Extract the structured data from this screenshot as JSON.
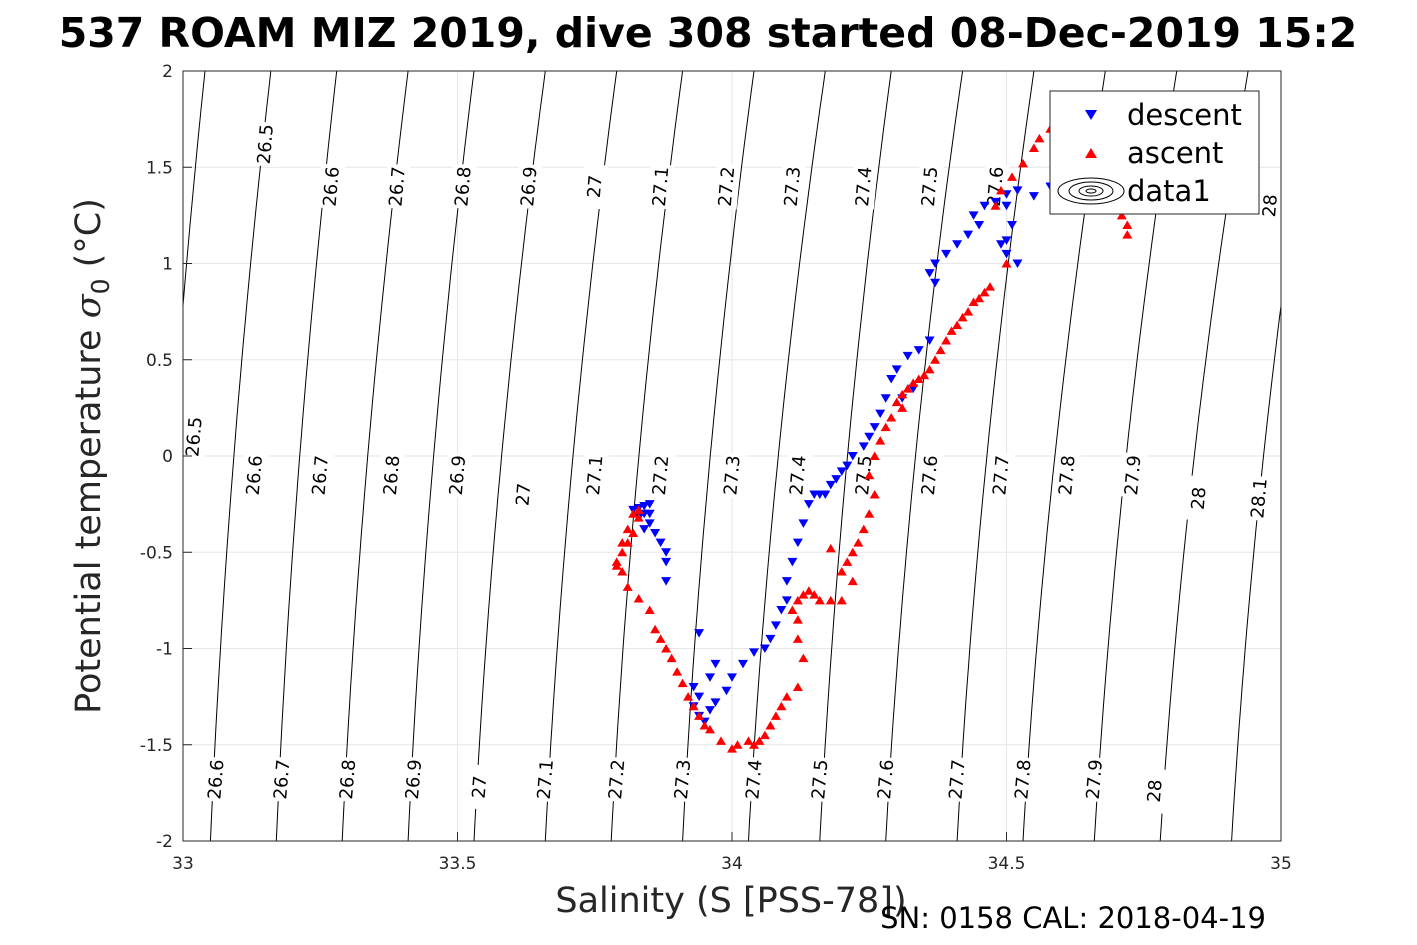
{
  "chart_data": {
    "type": "scatter",
    "title": "537 ROAM MIZ 2019, dive 308 started 08-Dec-2019 15:2",
    "xlabel": "Salinity (S [PSS-78])",
    "ylabel": "Potential temperature σ_0 (°C)",
    "ylabel_main": "Potential temperature ",
    "ylabel_sym": "σ",
    "ylabel_sub": "0",
    "ylabel_unit": " (°C)",
    "xlim": [
      33,
      35
    ],
    "ylim": [
      -2,
      2
    ],
    "xticks": [
      "33",
      "33.5",
      "34",
      "34.5",
      "35"
    ],
    "yticks": [
      "2",
      "1.5",
      "1",
      "0.5",
      "0",
      "-0.5",
      "-1",
      "-1.5",
      "-2"
    ],
    "grid": true,
    "legend": {
      "position": "top-right",
      "entries": [
        "descent",
        "ascent",
        "data1"
      ]
    },
    "footer": "SN: 0158  CAL: 2018-04-19",
    "contour_levels": [
      {
        "level": "26.5",
        "s_at_t2": 33.04,
        "s_at_tm2": 32.94,
        "labels": [
          [
            33.15,
            1.62
          ],
          [
            33.02,
            0.1
          ]
        ]
      },
      {
        "level": "26.6",
        "s_at_t2": 33.16,
        "s_at_tm2": 33.05,
        "labels": [
          [
            33.27,
            1.4
          ],
          [
            33.13,
            -0.1
          ],
          [
            33.06,
            -1.68
          ]
        ]
      },
      {
        "level": "26.7",
        "s_at_t2": 33.28,
        "s_at_tm2": 33.17,
        "labels": [
          [
            33.39,
            1.4
          ],
          [
            33.25,
            -0.1
          ],
          [
            33.18,
            -1.68
          ]
        ]
      },
      {
        "level": "26.8",
        "s_at_t2": 33.41,
        "s_at_tm2": 33.29,
        "labels": [
          [
            33.51,
            1.4
          ],
          [
            33.38,
            -0.1
          ],
          [
            33.3,
            -1.68
          ]
        ]
      },
      {
        "level": "26.9",
        "s_at_t2": 33.53,
        "s_at_tm2": 33.41,
        "labels": [
          [
            33.63,
            1.4
          ],
          [
            33.5,
            -0.1
          ],
          [
            33.42,
            -1.68
          ]
        ]
      },
      {
        "level": "27",
        "s_at_t2": 33.66,
        "s_at_tm2": 33.53,
        "labels": [
          [
            33.75,
            1.4
          ],
          [
            33.62,
            -0.2
          ],
          [
            33.54,
            -1.72
          ]
        ]
      },
      {
        "level": "27.1",
        "s_at_t2": 33.79,
        "s_at_tm2": 33.66,
        "labels": [
          [
            33.87,
            1.4
          ],
          [
            33.75,
            -0.1
          ],
          [
            33.66,
            -1.68
          ]
        ]
      },
      {
        "level": "27.2",
        "s_at_t2": 33.91,
        "s_at_tm2": 33.78,
        "labels": [
          [
            33.99,
            1.4
          ],
          [
            33.87,
            -0.1
          ],
          [
            33.79,
            -1.68
          ]
        ]
      },
      {
        "level": "27.3",
        "s_at_t2": 34.04,
        "s_at_tm2": 33.91,
        "labels": [
          [
            34.11,
            1.4
          ],
          [
            34.0,
            -0.1
          ],
          [
            33.91,
            -1.68
          ]
        ]
      },
      {
        "level": "27.4",
        "s_at_t2": 34.17,
        "s_at_tm2": 34.03,
        "labels": [
          [
            34.24,
            1.4
          ],
          [
            34.12,
            -0.1
          ],
          [
            34.04,
            -1.68
          ]
        ]
      },
      {
        "level": "27.5",
        "s_at_t2": 34.29,
        "s_at_tm2": 34.16,
        "labels": [
          [
            34.36,
            1.4
          ],
          [
            34.24,
            -0.1
          ],
          [
            34.16,
            -1.68
          ]
        ]
      },
      {
        "level": "27.6",
        "s_at_t2": 34.42,
        "s_at_tm2": 34.28,
        "labels": [
          [
            34.48,
            1.4
          ],
          [
            34.36,
            -0.1
          ],
          [
            34.28,
            -1.68
          ]
        ]
      },
      {
        "level": "27.7",
        "s_at_t2": 34.55,
        "s_at_tm2": 34.41,
        "labels": [
          [
            34.49,
            -0.1
          ],
          [
            34.41,
            -1.68
          ]
        ]
      },
      {
        "level": "27.8",
        "s_at_t2": 34.68,
        "s_at_tm2": 34.53,
        "labels": [
          [
            34.61,
            -0.1
          ],
          [
            34.53,
            -1.68
          ]
        ]
      },
      {
        "level": "27.9",
        "s_at_t2": 34.81,
        "s_at_tm2": 34.66,
        "labels": [
          [
            34.73,
            -0.1
          ],
          [
            34.66,
            -1.68
          ]
        ]
      },
      {
        "level": "28",
        "s_at_t2": 34.94,
        "s_at_tm2": 34.78,
        "labels": [
          [
            34.98,
            1.3
          ],
          [
            34.85,
            -0.22
          ],
          [
            34.77,
            -1.74
          ]
        ]
      },
      {
        "level": "28.1",
        "s_at_t2": 35.06,
        "s_at_tm2": 34.91,
        "labels": [
          [
            34.96,
            -0.22
          ]
        ]
      }
    ],
    "series": [
      {
        "name": "descent",
        "color": "#0000ff",
        "marker": "triangle-down",
        "points": [
          [
            34.7,
            1.62
          ],
          [
            34.68,
            1.58
          ],
          [
            34.65,
            1.55
          ],
          [
            34.62,
            1.5
          ],
          [
            34.6,
            1.45
          ],
          [
            34.58,
            1.4
          ],
          [
            34.55,
            1.35
          ],
          [
            34.52,
            1.38
          ],
          [
            34.5,
            1.36
          ],
          [
            34.48,
            1.32
          ],
          [
            34.46,
            1.3
          ],
          [
            34.44,
            1.25
          ],
          [
            34.45,
            1.2
          ],
          [
            34.43,
            1.15
          ],
          [
            34.41,
            1.1
          ],
          [
            34.39,
            1.05
          ],
          [
            34.37,
            1.0
          ],
          [
            34.36,
            0.95
          ],
          [
            34.5,
            1.3
          ],
          [
            34.51,
            1.2
          ],
          [
            34.5,
            1.12
          ],
          [
            34.5,
            1.05
          ],
          [
            34.52,
            1.0
          ],
          [
            34.49,
            1.1
          ],
          [
            34.37,
            0.9
          ],
          [
            34.36,
            0.6
          ],
          [
            34.34,
            0.55
          ],
          [
            34.32,
            0.52
          ],
          [
            34.3,
            0.45
          ],
          [
            34.33,
            0.35
          ],
          [
            34.31,
            0.3
          ],
          [
            34.29,
            0.4
          ],
          [
            34.28,
            0.3
          ],
          [
            34.27,
            0.22
          ],
          [
            34.26,
            0.15
          ],
          [
            34.25,
            0.1
          ],
          [
            34.24,
            0.05
          ],
          [
            34.22,
            0.0
          ],
          [
            34.21,
            -0.05
          ],
          [
            34.2,
            -0.08
          ],
          [
            34.19,
            -0.12
          ],
          [
            34.18,
            -0.15
          ],
          [
            34.17,
            -0.2
          ],
          [
            34.16,
            -0.2
          ],
          [
            34.15,
            -0.2
          ],
          [
            34.14,
            -0.25
          ],
          [
            34.13,
            -0.35
          ],
          [
            34.12,
            -0.45
          ],
          [
            34.11,
            -0.55
          ],
          [
            34.1,
            -0.65
          ],
          [
            34.1,
            -0.75
          ],
          [
            34.09,
            -0.8
          ],
          [
            34.08,
            -0.88
          ],
          [
            34.07,
            -0.95
          ],
          [
            34.06,
            -1.0
          ],
          [
            34.04,
            -1.02
          ],
          [
            34.02,
            -1.08
          ],
          [
            34.0,
            -1.15
          ],
          [
            33.99,
            -1.22
          ],
          [
            33.97,
            -1.28
          ],
          [
            33.96,
            -1.32
          ],
          [
            33.95,
            -1.38
          ],
          [
            33.94,
            -1.35
          ],
          [
            33.93,
            -1.3
          ],
          [
            33.94,
            -1.25
          ],
          [
            33.96,
            -1.15
          ],
          [
            33.97,
            -1.08
          ],
          [
            33.94,
            -0.92
          ],
          [
            33.93,
            -1.2
          ],
          [
            33.88,
            -0.5
          ],
          [
            33.87,
            -0.45
          ],
          [
            33.86,
            -0.4
          ],
          [
            33.85,
            -0.35
          ],
          [
            33.84,
            -0.3
          ],
          [
            33.83,
            -0.27
          ],
          [
            33.82,
            -0.28
          ],
          [
            33.83,
            -0.32
          ],
          [
            33.84,
            -0.38
          ],
          [
            33.85,
            -0.3
          ],
          [
            33.85,
            -0.25
          ],
          [
            33.88,
            -0.55
          ],
          [
            33.88,
            -0.65
          ],
          [
            33.84,
            -0.26
          ]
        ]
      },
      {
        "name": "ascent",
        "color": "#ff0000",
        "marker": "triangle-up",
        "points": [
          [
            34.72,
            1.15
          ],
          [
            34.72,
            1.2
          ],
          [
            34.71,
            1.25
          ],
          [
            34.7,
            1.3
          ],
          [
            34.66,
            1.4
          ],
          [
            34.63,
            1.55
          ],
          [
            34.6,
            1.62
          ],
          [
            34.58,
            1.7
          ],
          [
            34.56,
            1.65
          ],
          [
            34.55,
            1.6
          ],
          [
            34.53,
            1.52
          ],
          [
            34.51,
            1.45
          ],
          [
            34.49,
            1.38
          ],
          [
            34.48,
            1.3
          ],
          [
            34.5,
            1.0
          ],
          [
            34.47,
            0.88
          ],
          [
            34.46,
            0.85
          ],
          [
            34.45,
            0.82
          ],
          [
            34.44,
            0.8
          ],
          [
            34.43,
            0.75
          ],
          [
            34.42,
            0.72
          ],
          [
            34.41,
            0.68
          ],
          [
            34.4,
            0.65
          ],
          [
            34.39,
            0.6
          ],
          [
            34.38,
            0.55
          ],
          [
            34.37,
            0.5
          ],
          [
            34.36,
            0.45
          ],
          [
            34.35,
            0.42
          ],
          [
            34.34,
            0.4
          ],
          [
            34.33,
            0.38
          ],
          [
            34.32,
            0.35
          ],
          [
            34.31,
            0.32
          ],
          [
            34.3,
            0.28
          ],
          [
            34.31,
            0.25
          ],
          [
            34.29,
            0.2
          ],
          [
            34.28,
            0.15
          ],
          [
            34.27,
            0.08
          ],
          [
            34.26,
            0.0
          ],
          [
            34.25,
            -0.1
          ],
          [
            34.26,
            -0.2
          ],
          [
            34.25,
            -0.3
          ],
          [
            34.24,
            -0.38
          ],
          [
            34.23,
            -0.45
          ],
          [
            34.22,
            -0.5
          ],
          [
            34.21,
            -0.55
          ],
          [
            34.2,
            -0.6
          ],
          [
            34.18,
            -0.48
          ],
          [
            34.22,
            -0.65
          ],
          [
            34.2,
            -0.75
          ],
          [
            34.18,
            -0.75
          ],
          [
            34.16,
            -0.75
          ],
          [
            34.15,
            -0.72
          ],
          [
            34.14,
            -0.7
          ],
          [
            34.13,
            -0.72
          ],
          [
            34.12,
            -0.75
          ],
          [
            34.11,
            -0.8
          ],
          [
            34.12,
            -0.85
          ],
          [
            34.12,
            -0.95
          ],
          [
            34.13,
            -1.05
          ],
          [
            34.12,
            -1.2
          ],
          [
            34.1,
            -1.25
          ],
          [
            34.09,
            -1.3
          ],
          [
            34.08,
            -1.35
          ],
          [
            34.07,
            -1.4
          ],
          [
            34.06,
            -1.45
          ],
          [
            34.05,
            -1.48
          ],
          [
            34.04,
            -1.5
          ],
          [
            34.03,
            -1.48
          ],
          [
            34.01,
            -1.5
          ],
          [
            34.0,
            -1.52
          ],
          [
            33.98,
            -1.48
          ],
          [
            33.96,
            -1.42
          ],
          [
            33.95,
            -1.4
          ],
          [
            33.94,
            -1.35
          ],
          [
            33.93,
            -1.3
          ],
          [
            33.92,
            -1.25
          ],
          [
            33.91,
            -1.18
          ],
          [
            33.9,
            -1.12
          ],
          [
            33.89,
            -1.05
          ],
          [
            33.88,
            -1.0
          ],
          [
            33.87,
            -0.95
          ],
          [
            33.86,
            -0.9
          ],
          [
            33.85,
            -0.8
          ],
          [
            33.83,
            -0.74
          ],
          [
            33.81,
            -0.68
          ],
          [
            33.8,
            -0.6
          ],
          [
            33.79,
            -0.57
          ],
          [
            33.8,
            -0.5
          ],
          [
            33.81,
            -0.45
          ],
          [
            33.82,
            -0.4
          ],
          [
            33.83,
            -0.32
          ],
          [
            33.83,
            -0.28
          ],
          [
            33.82,
            -0.3
          ],
          [
            33.81,
            -0.38
          ],
          [
            33.8,
            -0.45
          ],
          [
            33.79,
            -0.55
          ]
        ]
      }
    ]
  }
}
